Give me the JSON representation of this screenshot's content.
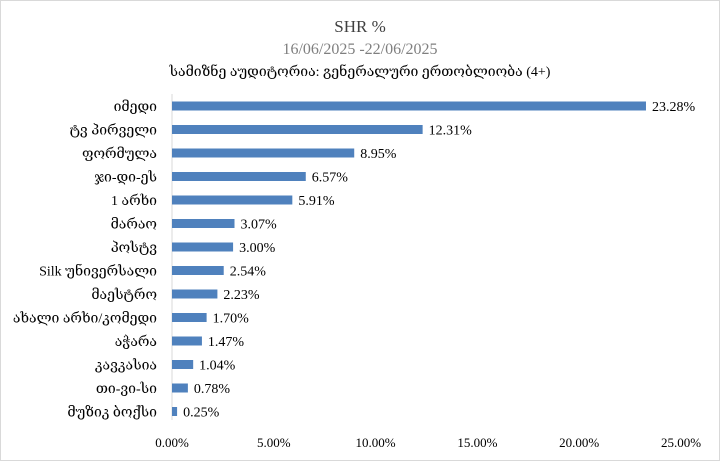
{
  "chart_data": {
    "type": "bar",
    "orientation": "horizontal",
    "title": "SHR %",
    "subtitle": "16/06/2025 -22/06/2025",
    "subtitle2": "სამიზნე აუდიტორია: გენერალური ერთობლიობა (4+)",
    "categories": [
      "იმედი",
      "ტვ პირველი",
      "ფორმულა",
      "ჯი-დი-ეს",
      "1 არხი",
      "მარაო",
      "პოსტვ",
      "Silk უნივერსალი",
      "მაესტრო",
      "ახალი არხი/კომედი",
      "აჭარა",
      "კავკასია",
      "თი-ვი-სი",
      "მუზიკ ბოქსი"
    ],
    "values": [
      23.28,
      12.31,
      8.95,
      6.57,
      5.91,
      3.07,
      3.0,
      2.54,
      2.23,
      1.7,
      1.47,
      1.04,
      0.78,
      0.25
    ],
    "data_labels": [
      "23.28%",
      "12.31%",
      "8.95%",
      "6.57%",
      "5.91%",
      "3.07%",
      "3.00%",
      "2.54%",
      "2.23%",
      "1.70%",
      "1.47%",
      "1.04%",
      "0.78%",
      "0.25%"
    ],
    "x_ticks": [
      "0.00%",
      "5.00%",
      "10.00%",
      "15.00%",
      "20.00%",
      "25.00%"
    ],
    "xlim": [
      0,
      25
    ],
    "xlabel": "",
    "ylabel": "",
    "grid": false,
    "legend": "none",
    "bar_color": "#4f81bd"
  }
}
